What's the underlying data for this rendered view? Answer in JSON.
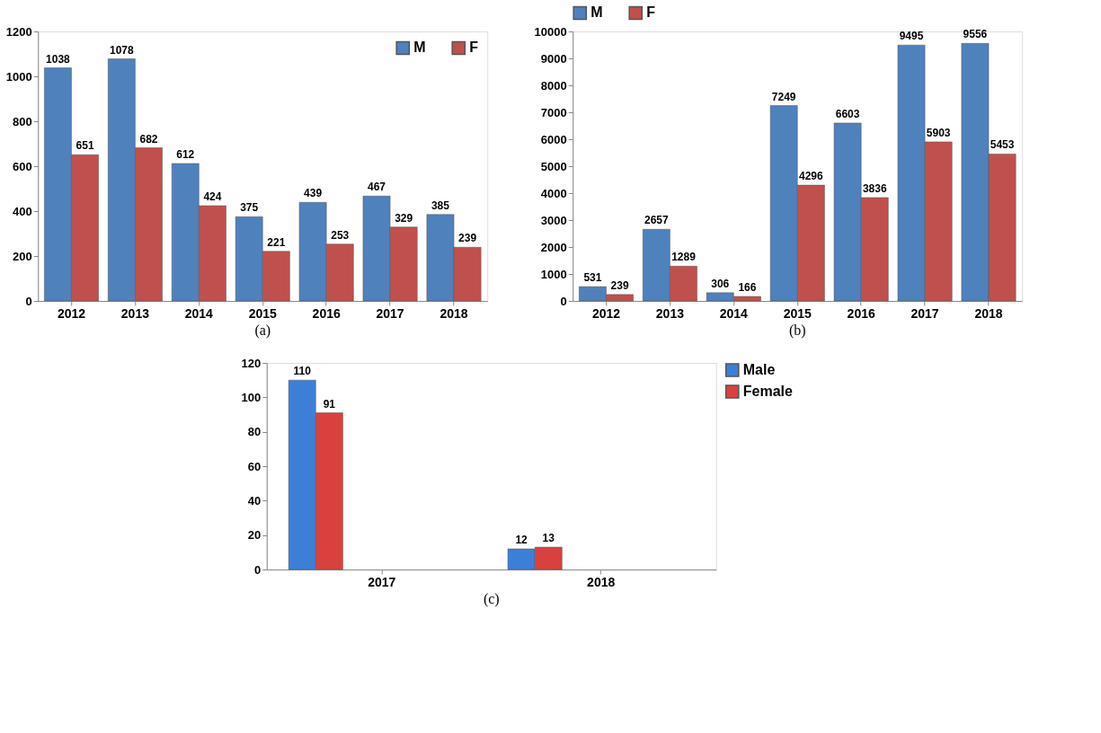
{
  "chart_data": [
    {
      "type": "bar",
      "categories": [
        "2012",
        "2013",
        "2014",
        "2015",
        "2016",
        "2017",
        "2018"
      ],
      "series": [
        {
          "name": "M",
          "color": "#4f81bd",
          "values": [
            1038,
            1078,
            612,
            375,
            439,
            467,
            385
          ]
        },
        {
          "name": "F",
          "color": "#c0504d",
          "values": [
            651,
            682,
            424,
            221,
            253,
            329,
            239
          ]
        }
      ],
      "ylim": [
        0,
        1200
      ],
      "yticks": [
        0,
        200,
        400,
        600,
        800,
        1000,
        1200
      ],
      "data_labels": true,
      "legend": "top right",
      "grid": false,
      "annotations": [
        "(a)"
      ]
    },
    {
      "type": "bar",
      "categories": [
        "2012",
        "2013",
        "2014",
        "2015",
        "2016",
        "2017",
        "2018"
      ],
      "series": [
        {
          "name": "M",
          "color": "#4f81bd",
          "values": [
            531,
            2657,
            306,
            7249,
            6603,
            9495,
            9556
          ]
        },
        {
          "name": "F",
          "color": "#c0504d",
          "values": [
            239,
            1289,
            166,
            4296,
            3836,
            5903,
            5453
          ]
        }
      ],
      "ylim": [
        0,
        10000
      ],
      "yticks": [
        0,
        1000,
        2000,
        3000,
        4000,
        5000,
        6000,
        7000,
        8000,
        9000,
        10000
      ],
      "data_labels": true,
      "legend": "top",
      "grid": false,
      "annotations": [
        "(b)"
      ]
    },
    {
      "type": "bar",
      "categories": [
        "2017",
        "2018"
      ],
      "series": [
        {
          "name": "Male",
          "color": "#3d7fd6",
          "values": [
            110,
            12
          ]
        },
        {
          "name": "Female",
          "color": "#d9413e",
          "values": [
            91,
            13
          ]
        }
      ],
      "ylim": [
        0,
        120
      ],
      "yticks": [
        0,
        20,
        40,
        60,
        80,
        100,
        120
      ],
      "data_labels": true,
      "legend": "right",
      "grid": false,
      "annotations": [
        "(c)"
      ]
    }
  ]
}
